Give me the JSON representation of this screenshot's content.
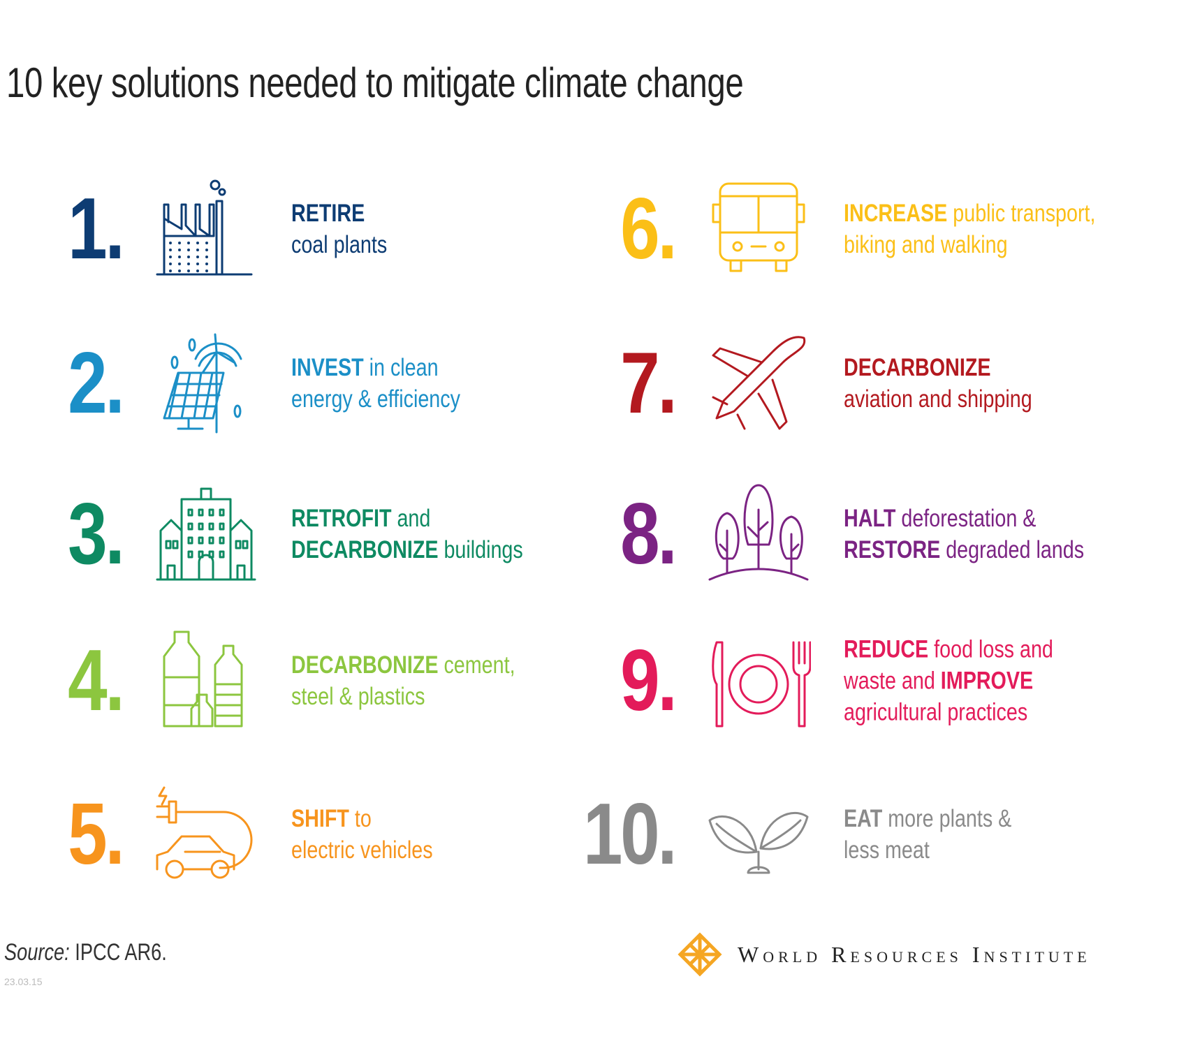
{
  "title": "10 key solutions needed to mitigate climate change",
  "items": [
    {
      "number": "1.",
      "color": "#0d3c73",
      "icon": "factory-icon",
      "lines": [
        [
          {
            "t": "RETIRE",
            "b": true
          }
        ],
        [
          {
            "t": "coal plants",
            "b": false
          }
        ]
      ]
    },
    {
      "number": "2.",
      "color": "#1b8fc7",
      "icon": "solar-wind-icon",
      "lines": [
        [
          {
            "t": "INVEST",
            "b": true
          },
          {
            "t": " in clean",
            "b": false
          }
        ],
        [
          {
            "t": "energy & efficiency",
            "b": false
          }
        ]
      ]
    },
    {
      "number": "3.",
      "color": "#0e8a62",
      "icon": "buildings-icon",
      "lines": [
        [
          {
            "t": "RETROFIT",
            "b": true
          },
          {
            "t": " and",
            "b": false
          }
        ],
        [
          {
            "t": "DECARBONIZE",
            "b": true
          },
          {
            "t": " buildings",
            "b": false
          }
        ]
      ]
    },
    {
      "number": "4.",
      "color": "#8cc63f",
      "icon": "bottles-icon",
      "lines": [
        [
          {
            "t": "DECARBONIZE",
            "b": true
          },
          {
            "t": " cement,",
            "b": false
          }
        ],
        [
          {
            "t": "steel & plastics",
            "b": false
          }
        ]
      ]
    },
    {
      "number": "5.",
      "color": "#f7941d",
      "icon": "electric-car-icon",
      "lines": [
        [
          {
            "t": "SHIFT",
            "b": true
          },
          {
            "t": " to",
            "b": false
          }
        ],
        [
          {
            "t": "electric vehicles",
            "b": false
          }
        ]
      ]
    },
    {
      "number": "6.",
      "color": "#fbbf17",
      "icon": "bus-icon",
      "lines": [
        [
          {
            "t": "INCREASE",
            "b": true
          },
          {
            "t": " public transport,",
            "b": false
          }
        ],
        [
          {
            "t": "biking and walking",
            "b": false
          }
        ]
      ]
    },
    {
      "number": "7.",
      "color": "#b3191f",
      "icon": "airplane-icon",
      "lines": [
        [
          {
            "t": "DECARBONIZE",
            "b": true
          }
        ],
        [
          {
            "t": "aviation and shipping",
            "b": false
          }
        ]
      ]
    },
    {
      "number": "8.",
      "color": "#7b2383",
      "icon": "trees-icon",
      "lines": [
        [
          {
            "t": "HALT",
            "b": true
          },
          {
            "t": " deforestation &",
            "b": false
          }
        ],
        [
          {
            "t": "RESTORE",
            "b": true
          },
          {
            "t": " degraded lands",
            "b": false
          }
        ]
      ]
    },
    {
      "number": "9.",
      "color": "#e31b5a",
      "icon": "plate-cutlery-icon",
      "lines": [
        [
          {
            "t": "REDUCE",
            "b": true
          },
          {
            "t": " food loss and",
            "b": false
          }
        ],
        [
          {
            "t": "waste and ",
            "b": false
          },
          {
            "t": "IMPROVE",
            "b": true
          }
        ],
        [
          {
            "t": "agricultural practices",
            "b": false
          }
        ]
      ]
    },
    {
      "number": "10.",
      "color": "#8a8a8a",
      "icon": "sprout-icon",
      "lines": [
        [
          {
            "t": "EAT",
            "b": true
          },
          {
            "t": " more plants &",
            "b": false
          }
        ],
        [
          {
            "t": "less meat",
            "b": false
          }
        ]
      ]
    }
  ],
  "footer": {
    "source_label": "Source:",
    "source_text": " IPCC AR6.",
    "date_code": "23.03.15",
    "logo_name": "World Resources Institute",
    "logo_color": "#f5a623"
  }
}
